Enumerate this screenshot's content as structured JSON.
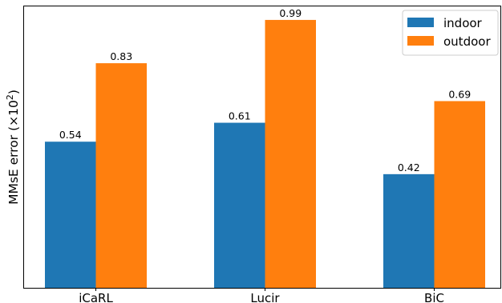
{
  "chart_data": {
    "type": "bar",
    "categories": [
      "iCaRL",
      "Lucir",
      "BiC"
    ],
    "series": [
      {
        "name": "indoor",
        "color": "#1f77b4",
        "values": [
          0.54,
          0.61,
          0.42
        ],
        "value_labels": [
          "0.54",
          "0.61",
          "0.42"
        ]
      },
      {
        "name": "outdoor",
        "color": "#ff7f0e",
        "values": [
          0.83,
          0.99,
          0.69
        ],
        "value_labels": [
          "0.83",
          "0.99",
          "0.69"
        ]
      }
    ],
    "ylabel_main": "MMsE error (×10",
    "ylabel_sup": "2",
    "ylabel_close": ")",
    "ylim": [
      0,
      1.04
    ],
    "yticks_visible": false,
    "legend_placement": "top-right",
    "grid": false
  }
}
